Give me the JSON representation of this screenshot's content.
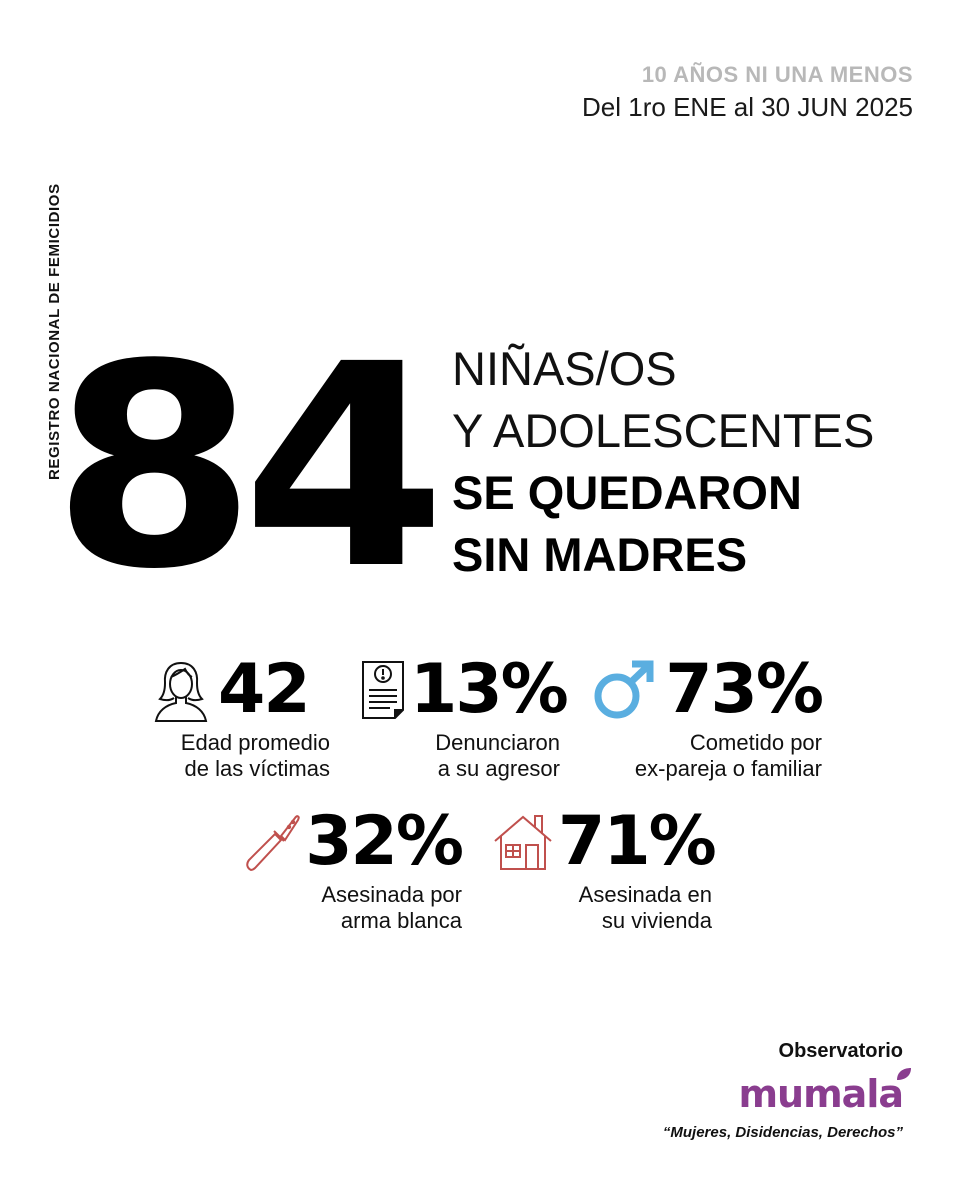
{
  "header": {
    "title": "10 AÑOS NI UNA MENOS",
    "dates_prefix": "Del ",
    "dates_main": "1ro ENE al 30 JUN 2025"
  },
  "side_label": "REGISTRO NACIONAL DE FEMICIDIOS",
  "main": {
    "number": "84",
    "line1": "NIÑAS/OS",
    "line2": "Y ADOLESCENTES",
    "line3": "SE QUEDARON",
    "line4": "SIN MADRES"
  },
  "stats": [
    {
      "value": "42",
      "caption1": "Edad promedio",
      "caption2": "de las víctimas",
      "icon": "woman-icon"
    },
    {
      "value": "13%",
      "caption1": "Denunciaron",
      "caption2": "a su agresor",
      "icon": "document-alert-icon"
    },
    {
      "value": "73%",
      "caption1": "Cometido por",
      "caption2": "ex-pareja o familiar",
      "icon": "male-symbol-icon"
    },
    {
      "value": "32%",
      "caption1": "Asesinada por",
      "caption2": "arma blanca",
      "icon": "knife-icon"
    },
    {
      "value": "71%",
      "caption1": "Asesinada en",
      "caption2": "su vivienda",
      "icon": "house-icon"
    }
  ],
  "footer": {
    "observatorio": "Observatorio",
    "brand": "mumala",
    "tagline": "“Mujeres, Disidencias, Derechos”"
  },
  "colors": {
    "header_gray": "#b8b8b8",
    "male_blue": "#5aaee0",
    "accent_red": "#c0504d",
    "brand_purple": "#8a3d8f"
  }
}
